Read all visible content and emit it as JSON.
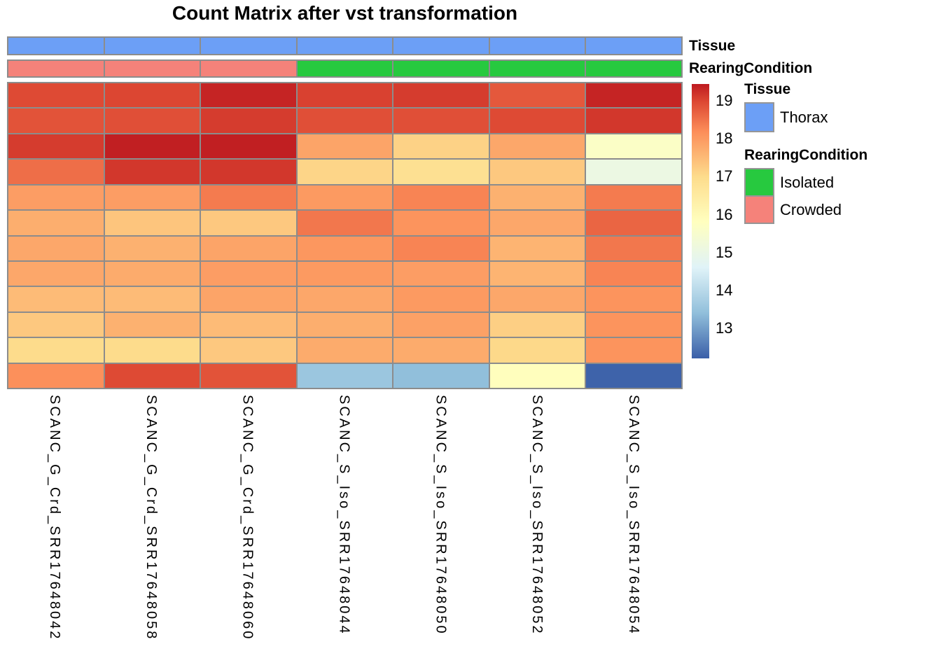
{
  "title": "Count Matrix after vst transformation",
  "bar_labels": {
    "tissue": "Tissue",
    "rearing": "RearingCondition"
  },
  "legend": {
    "tissue_header": "Tissue",
    "thorax_label": "Thorax",
    "rearing_header": "RearingCondition",
    "isolated_label": "Isolated",
    "crowded_label": "Crowded"
  },
  "colors": {
    "thorax": "#6C9FF6",
    "isolated": "#27C93F",
    "crowded": "#F5827A",
    "grid_border": "#8C8C8C"
  },
  "chart_data": {
    "type": "heatmap",
    "title": "Count Matrix after vst transformation",
    "columns": [
      "SCANC_G_Crd_SRR17648042",
      "SCANC_G_Crd_SRR17648058",
      "SCANC_G_Crd_SRR17648060",
      "SCANC_S_Iso_SRR17648044",
      "SCANC_S_Iso_SRR17648050",
      "SCANC_S_Iso_SRR17648052",
      "SCANC_S_Iso_SRR17648054"
    ],
    "n_rows": 12,
    "row_labels_shown": false,
    "column_annotations": {
      "Tissue": [
        "Thorax",
        "Thorax",
        "Thorax",
        "Thorax",
        "Thorax",
        "Thorax",
        "Thorax"
      ],
      "RearingCondition": [
        "Crowded",
        "Crowded",
        "Crowded",
        "Isolated",
        "Isolated",
        "Isolated",
        "Isolated"
      ]
    },
    "annotation_colors": {
      "Tissue": {
        "Thorax": "#6C9FF6"
      },
      "RearingCondition": {
        "Isolated": "#27C93F",
        "Crowded": "#F5827A"
      }
    },
    "values": [
      [
        18.95,
        19.0,
        19.35,
        19.05,
        19.1,
        18.8,
        19.35
      ],
      [
        18.85,
        18.9,
        19.1,
        18.9,
        18.9,
        18.95,
        19.15
      ],
      [
        19.1,
        19.4,
        19.4,
        17.85,
        17.15,
        17.8,
        15.65
      ],
      [
        18.55,
        19.15,
        19.15,
        17.1,
        16.85,
        17.3,
        15.05
      ],
      [
        17.95,
        17.95,
        18.4,
        18.0,
        18.3,
        17.65,
        18.4
      ],
      [
        17.7,
        17.35,
        17.3,
        18.45,
        18.1,
        17.8,
        18.65
      ],
      [
        17.8,
        17.65,
        17.85,
        18.05,
        18.3,
        17.6,
        18.45
      ],
      [
        17.8,
        17.75,
        17.95,
        18.0,
        17.95,
        17.6,
        18.3
      ],
      [
        17.5,
        17.5,
        17.85,
        17.8,
        18.0,
        17.8,
        18.1
      ],
      [
        17.3,
        17.65,
        17.5,
        17.7,
        17.9,
        17.2,
        18.1
      ],
      [
        17.0,
        17.0,
        17.3,
        17.75,
        17.75,
        17.05,
        18.1
      ],
      [
        18.15,
        18.95,
        18.85,
        13.55,
        13.4,
        15.85,
        12.25
      ]
    ],
    "colorbar": {
      "ticks": [
        19,
        18,
        17,
        16,
        15,
        14,
        13
      ],
      "domain": [
        12.2,
        19.45
      ],
      "color_stops": [
        [
          12.2,
          "#3A5FA8"
        ],
        [
          13.4,
          "#91BFDB"
        ],
        [
          14.6,
          "#E0F3F8"
        ],
        [
          15.8,
          "#FFFFBF"
        ],
        [
          17.0,
          "#FDDC8C"
        ],
        [
          18.2,
          "#FC8D59"
        ],
        [
          19.0,
          "#DC4632"
        ],
        [
          19.45,
          "#BE1A20"
        ]
      ],
      "legend_position": "right"
    }
  }
}
